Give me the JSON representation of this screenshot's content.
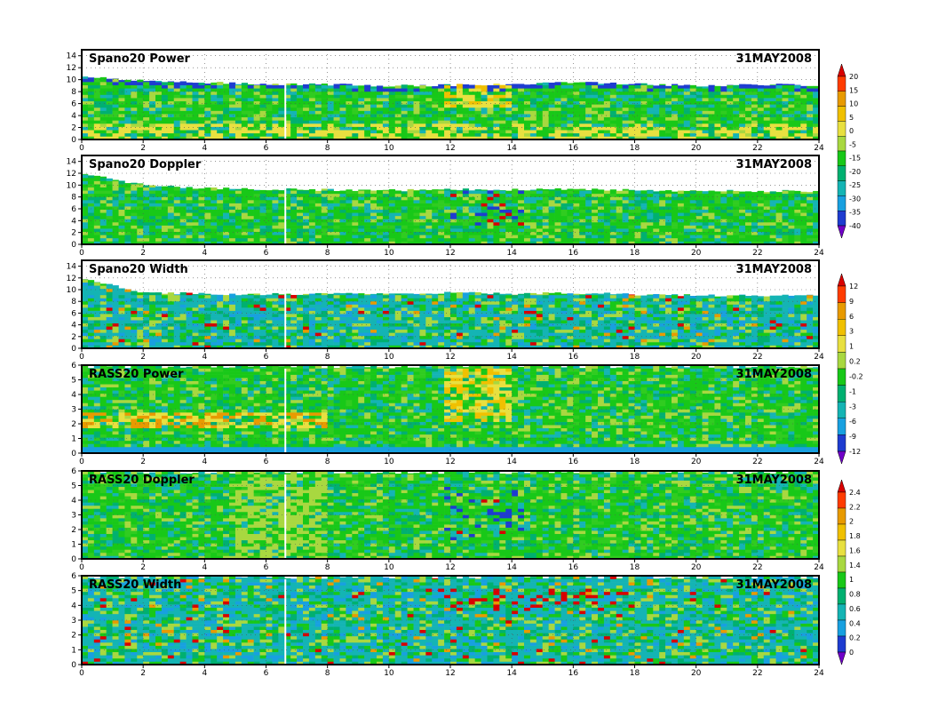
{
  "date_label": "31MAY2008",
  "x_ticks": [
    0,
    2,
    4,
    6,
    8,
    10,
    12,
    14,
    16,
    18,
    20,
    22,
    24
  ],
  "colorbars": [
    {
      "for_panels": [
        0,
        1
      ],
      "labels": [
        "20",
        "15",
        "10",
        "5",
        "0",
        "-5",
        "-15",
        "-20",
        "-25",
        "-30",
        "-35",
        "-40"
      ],
      "colors": [
        "#d80000",
        "#ff3c00",
        "#e89a00",
        "#f0c000",
        "#e8e040",
        "#a8d840",
        "#18c818",
        "#00b070",
        "#14b4b4",
        "#18a0e0",
        "#1e3cd0",
        "#7000c8"
      ]
    },
    {
      "for_panels": [
        2,
        3
      ],
      "labels": [
        "12",
        "9",
        "6",
        "3",
        "1",
        "0.2",
        "-0.2",
        "-1",
        "-3",
        "-6",
        "-9",
        "-12"
      ],
      "colors": [
        "#d80000",
        "#ff3c00",
        "#e89a00",
        "#f0c000",
        "#e8e040",
        "#a8d840",
        "#18c818",
        "#00b070",
        "#14b4b4",
        "#18a0e0",
        "#1e3cd0",
        "#7000c8"
      ]
    },
    {
      "for_panels": [
        4,
        5
      ],
      "labels": [
        "2.4",
        "2.2",
        "2",
        "1.8",
        "1.6",
        "1.4",
        "1",
        "0.8",
        "0.6",
        "0.4",
        "0.2",
        "0"
      ],
      "colors": [
        "#d80000",
        "#ff3c00",
        "#e89a00",
        "#f0c000",
        "#e8e040",
        "#a8d840",
        "#18c818",
        "#00b070",
        "#14b4b4",
        "#18a0e0",
        "#1e3cd0",
        "#7000c8"
      ]
    }
  ],
  "chart_data": [
    {
      "type": "heatmap",
      "title": "Spano20 Power",
      "date": "31MAY2008",
      "xlim": [
        0,
        24
      ],
      "ylim": [
        0,
        15
      ],
      "y_ticks": [
        0,
        2,
        4,
        6,
        8,
        10,
        12,
        14
      ],
      "top_height": [
        10.5,
        9.8,
        9.5,
        9.3,
        9.2,
        9.0,
        9.1,
        9.2,
        9.5,
        9.3,
        9.0,
        9.2,
        9.0
      ],
      "dominant": "green",
      "features": "yellow layer 0-2 km; orange patch ~12-14 h at 5-8 km; blue fringe near top"
    },
    {
      "type": "heatmap",
      "title": "Spano20 Doppler",
      "date": "31MAY2008",
      "xlim": [
        0,
        24
      ],
      "ylim": [
        0,
        15
      ],
      "y_ticks": [
        0,
        2,
        4,
        6,
        8,
        10,
        12,
        14
      ],
      "top_height": [
        12,
        10,
        9.5,
        9.3,
        9.2,
        9.1,
        9.3,
        9.2,
        9.3,
        9.2,
        9.0,
        9.0,
        9.0
      ],
      "dominant": "green",
      "features": "teal above 6 km; blue specks ~12-14 h below 4 km"
    },
    {
      "type": "heatmap",
      "title": "Spano20 Width",
      "date": "31MAY2008",
      "xlim": [
        0,
        24
      ],
      "ylim": [
        0,
        15
      ],
      "y_ticks": [
        0,
        2,
        4,
        6,
        8,
        10,
        12,
        14
      ],
      "top_height": [
        12,
        9.5,
        9.3,
        9.2,
        9.3,
        9.4,
        9.5,
        9.3,
        9.4,
        9.2,
        9.0,
        9.0,
        9.0
      ],
      "dominant": "teal",
      "features": "green mid layer; orange/red specks 1-8 km"
    },
    {
      "type": "heatmap",
      "title": "RASS20 Power",
      "date": "31MAY2008",
      "xlim": [
        0,
        24
      ],
      "ylim": [
        0,
        6
      ],
      "y_ticks": [
        0,
        1,
        2,
        3,
        4,
        5,
        6
      ],
      "top_height": [
        6,
        6,
        6,
        6,
        6,
        6,
        6,
        6,
        6,
        6,
        6,
        6,
        6
      ],
      "dominant": "green",
      "features": "orange-yellow layer 1.5-2.5 km early; orange patch ~12-14 h at 5-6 km; blue base"
    },
    {
      "type": "heatmap",
      "title": "RASS20 Doppler",
      "date": "31MAY2008",
      "xlim": [
        0,
        24
      ],
      "ylim": [
        0,
        6
      ],
      "y_ticks": [
        0,
        1,
        2,
        3,
        4,
        5,
        6
      ],
      "top_height": [
        6,
        6,
        6,
        6,
        6,
        6,
        6,
        6,
        6,
        6,
        6,
        6,
        6
      ],
      "dominant": "green",
      "features": "yellow-green band ~5-8 h; blue/red specks ~12-14 h at 3-5 km"
    },
    {
      "type": "heatmap",
      "title": "RASS20 Width",
      "date": "31MAY2008",
      "xlim": [
        0,
        24
      ],
      "ylim": [
        0,
        6
      ],
      "y_ticks": [
        0,
        1,
        2,
        3,
        4,
        5,
        6
      ],
      "top_height": [
        6,
        6,
        6,
        6,
        6,
        6,
        6,
        6,
        6,
        6,
        6,
        6,
        6
      ],
      "dominant": "teal",
      "features": "green lower layer; red specks ~12-18 h at 4-5 km"
    }
  ]
}
